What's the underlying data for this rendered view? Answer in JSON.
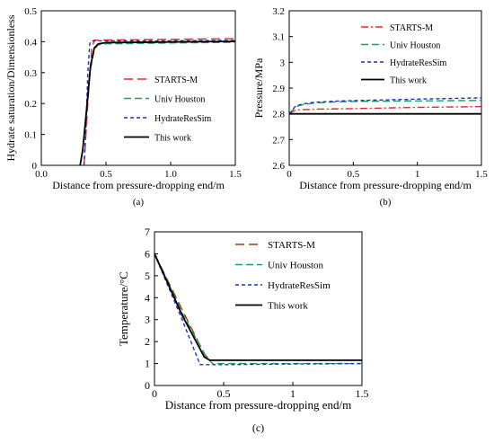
{
  "chart_data": [
    {
      "type": "line",
      "panel_label": "(a)",
      "xlabel": "Distance from pressure-dropping end/m",
      "ylabel": "Hydrate saturation/Dimensionless",
      "xlim": [
        0,
        1.5
      ],
      "ylim": [
        0,
        0.5
      ],
      "xticks": [
        "0.0",
        "0.5",
        "1.0",
        "1.5"
      ],
      "yticks": [
        "0",
        "0.1",
        "0.2",
        "0.3",
        "0.4",
        "0.5"
      ],
      "legend_position": "center-right",
      "series": [
        {
          "name": "STARTS-M",
          "color": "#e8262a",
          "dash": "long-dash",
          "x": [
            0.33,
            0.36,
            0.39,
            0.41,
            1.5
          ],
          "y": [
            0.0,
            0.2,
            0.38,
            0.405,
            0.41
          ]
        },
        {
          "name": "Univ Houston",
          "color": "#19a05a",
          "dash": "dash",
          "x": [
            0.3,
            0.32,
            0.35,
            0.38,
            0.41,
            0.44,
            0.5,
            1.0,
            1.5
          ],
          "y": [
            0.0,
            0.05,
            0.17,
            0.31,
            0.375,
            0.39,
            0.393,
            0.396,
            0.398
          ]
        },
        {
          "name": "HydrateResSim",
          "color": "#1c2fc4",
          "dash": "short-dash",
          "x": [
            0.33,
            0.345,
            0.36,
            0.375,
            0.39,
            0.5,
            1.0,
            1.5
          ],
          "y": [
            0.0,
            0.12,
            0.3,
            0.395,
            0.403,
            0.403,
            0.403,
            0.404
          ]
        },
        {
          "name": "This work",
          "color": "#000000",
          "dash": "solid",
          "x": [
            0.3,
            0.32,
            0.35,
            0.38,
            0.41,
            0.44,
            0.5,
            1.0,
            1.5
          ],
          "y": [
            0.0,
            0.05,
            0.18,
            0.32,
            0.38,
            0.393,
            0.397,
            0.399,
            0.401
          ]
        }
      ]
    },
    {
      "type": "line",
      "panel_label": "(b)",
      "xlabel": "Distance from pressure-dropping end/m",
      "ylabel": "Pressure/MPa",
      "xlim": [
        0,
        1.5
      ],
      "ylim": [
        2.6,
        3.2
      ],
      "xticks": [
        "0",
        "0.5",
        "1",
        "1.5"
      ],
      "yticks": [
        "2.6",
        "2.7",
        "2.8",
        "2.9",
        "3",
        "3.1",
        "3.2"
      ],
      "legend_position": "top-right",
      "series": [
        {
          "name": "STARTS-M",
          "color": "#e8262a",
          "dash": "dash-dot",
          "x": [
            0,
            0.05,
            0.2,
            0.5,
            1.0,
            1.5
          ],
          "y": [
            2.8,
            2.815,
            2.818,
            2.82,
            2.825,
            2.828
          ]
        },
        {
          "name": "Univ Houston",
          "color": "#19a05a",
          "dash": "dash",
          "x": [
            0,
            0.05,
            0.1,
            0.2,
            0.35,
            0.5,
            1.0,
            1.5
          ],
          "y": [
            2.8,
            2.827,
            2.835,
            2.842,
            2.846,
            2.848,
            2.85,
            2.852
          ]
        },
        {
          "name": "HydrateResSim",
          "color": "#1c2fc4",
          "dash": "short-dash",
          "x": [
            0,
            0.05,
            0.1,
            0.2,
            0.35,
            0.5,
            1.0,
            1.5
          ],
          "y": [
            2.8,
            2.83,
            2.838,
            2.845,
            2.849,
            2.851,
            2.857,
            2.862
          ]
        },
        {
          "name": "This work",
          "color": "#000000",
          "dash": "solid",
          "x": [
            0,
            1.5
          ],
          "y": [
            2.8,
            2.8
          ]
        }
      ]
    },
    {
      "type": "line",
      "panel_label": "(c)",
      "xlabel": "Distance from pressure-dropping end/m",
      "ylabel": "Temperature/°C",
      "xlim": [
        0,
        1.5
      ],
      "ylim": [
        0,
        7
      ],
      "xticks": [
        "0",
        "0.5",
        "1",
        "1.5"
      ],
      "yticks": [
        "0",
        "1",
        "2",
        "3",
        "4",
        "5",
        "6",
        "7"
      ],
      "legend_position": "top-right",
      "series": [
        {
          "name": "STARTS-M",
          "color": "#8b4513",
          "dash": "long-dash",
          "x": [
            0,
            0.2,
            0.36,
            0.4,
            0.5,
            1.0,
            1.5
          ],
          "y": [
            6.0,
            3.45,
            1.45,
            1.15,
            1.15,
            1.15,
            1.15
          ]
        },
        {
          "name": "Univ Houston",
          "color": "#19a05a",
          "dash": "dash",
          "x": [
            0,
            0.2,
            0.38,
            0.42,
            0.5,
            1.0,
            1.5
          ],
          "y": [
            6.0,
            3.3,
            1.25,
            1.0,
            1.0,
            1.0,
            1.0
          ]
        },
        {
          "name": "HydrateResSim",
          "color": "#1c2fc4",
          "dash": "short-dash",
          "x": [
            0,
            0.2,
            0.33,
            0.5,
            1.0,
            1.5
          ],
          "y": [
            6.0,
            3.0,
            0.95,
            0.95,
            0.98,
            1.0
          ]
        },
        {
          "name": "This work",
          "color": "#000000",
          "dash": "solid",
          "x": [
            0,
            0.2,
            0.36,
            0.4,
            0.5,
            1.0,
            1.5
          ],
          "y": [
            6.0,
            3.2,
            1.3,
            1.15,
            1.15,
            1.15,
            1.15
          ]
        }
      ]
    }
  ]
}
